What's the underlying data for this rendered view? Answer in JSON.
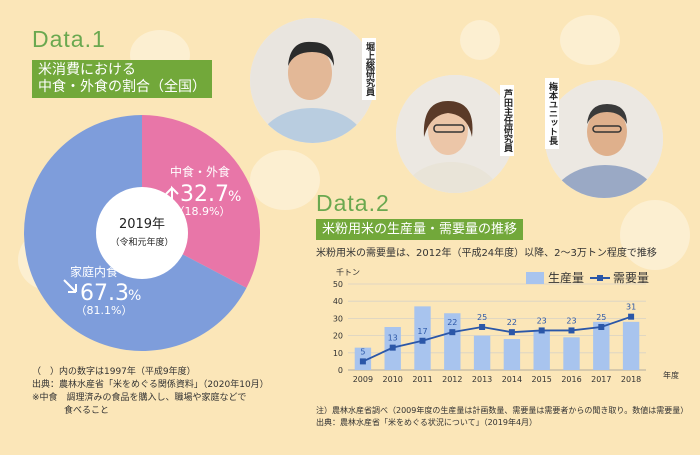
{
  "data1": {
    "heading": "Data.1",
    "title_line1": "米消費における",
    "title_line2": "中食・外食の割合（全国）",
    "center_year": "2019年",
    "center_era": "（令和元年度）",
    "slice_out_label": "中食・外食",
    "slice_out_value": "32.7",
    "slice_out_unit": "%",
    "slice_out_prev": "（18.9%）",
    "slice_home_label": "家庭内食",
    "slice_home_value": "67.3",
    "slice_home_unit": "%",
    "slice_home_prev": "（81.1%）",
    "note1": "（　）内の数字は1997年（平成9年度）",
    "note2": "出典：農林水産省「米をめぐる関係資料」（2020年10月）",
    "note3": "※中食　調理済みの食品を購入し、職場や家庭などで",
    "note4": "食べること"
  },
  "people": {
    "person1": "堀上総研究員",
    "person2": "芦田主任研究員",
    "person3": "梅本ユニット長"
  },
  "data2": {
    "heading": "Data.2",
    "title": "米粉用米の生産量・需要量の推移",
    "subtitle": "米粉用米の需要量は、2012年（平成24年度）以降、2〜3万トン程度で推移",
    "yunit": "千トン",
    "xunit": "年度",
    "legend_bar": "生産量",
    "legend_line": "需要量",
    "footnote1": "注）農林水産省調べ（2009年度の生産量は計画数量、需要量は需要者からの聞き取り。数値は需要量）",
    "footnote2": "出典：農林水産省「米をめぐる状況について」（2019年4月）"
  },
  "colors": {
    "accent_green": "#72a83a",
    "pie_home": "#7e9ddb",
    "pie_out": "#e876a8",
    "bar": "#a8c4ee",
    "line": "#2b57a8"
  },
  "chart_data": [
    {
      "type": "pie",
      "title": "米消費における中食・外食の割合（全国）",
      "categories": [
        "中食・外食",
        "家庭内食"
      ],
      "values": [
        32.7,
        67.3
      ]
    },
    {
      "type": "bar",
      "title": "米粉用米の生産量・需要量の推移",
      "xlabel": "年度",
      "ylabel": "千トン",
      "ylim": [
        0,
        50
      ],
      "grid": true,
      "legend": "top-right",
      "categories": [
        "2009",
        "2010",
        "2011",
        "2012",
        "2013",
        "2014",
        "2015",
        "2016",
        "2017",
        "2018"
      ],
      "series": [
        {
          "name": "生産量",
          "type": "bar",
          "values": [
            13,
            25,
            37,
            33,
            20,
            18,
            23,
            19,
            28,
            28
          ]
        },
        {
          "name": "需要量",
          "type": "line",
          "values": [
            5,
            13,
            17,
            22,
            25,
            22,
            23,
            23,
            25,
            31
          ]
        }
      ]
    }
  ]
}
